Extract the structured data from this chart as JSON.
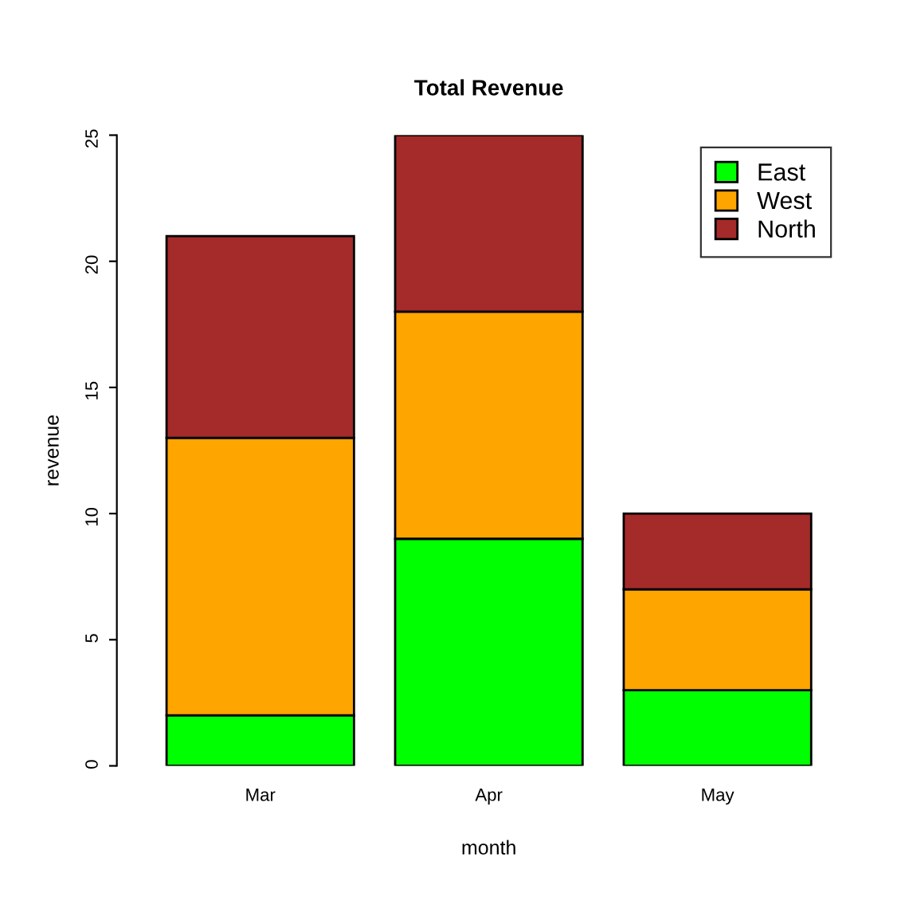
{
  "chart_data": {
    "type": "bar",
    "title": "Total Revenue",
    "xlabel": "month",
    "ylabel": "revenue",
    "categories": [
      "Mar",
      "Apr",
      "May"
    ],
    "stacked": true,
    "series": [
      {
        "name": "East",
        "color": "#00ff00",
        "values": [
          2,
          9,
          3
        ]
      },
      {
        "name": "West",
        "color": "#ffa500",
        "values": [
          11,
          9,
          4
        ]
      },
      {
        "name": "North",
        "color": "#a52a2a",
        "values": [
          8,
          7,
          3
        ]
      }
    ],
    "ylim": [
      0,
      25
    ],
    "yticks": [
      0,
      5,
      10,
      15,
      20,
      25
    ],
    "grid": false,
    "legend": "top right"
  }
}
